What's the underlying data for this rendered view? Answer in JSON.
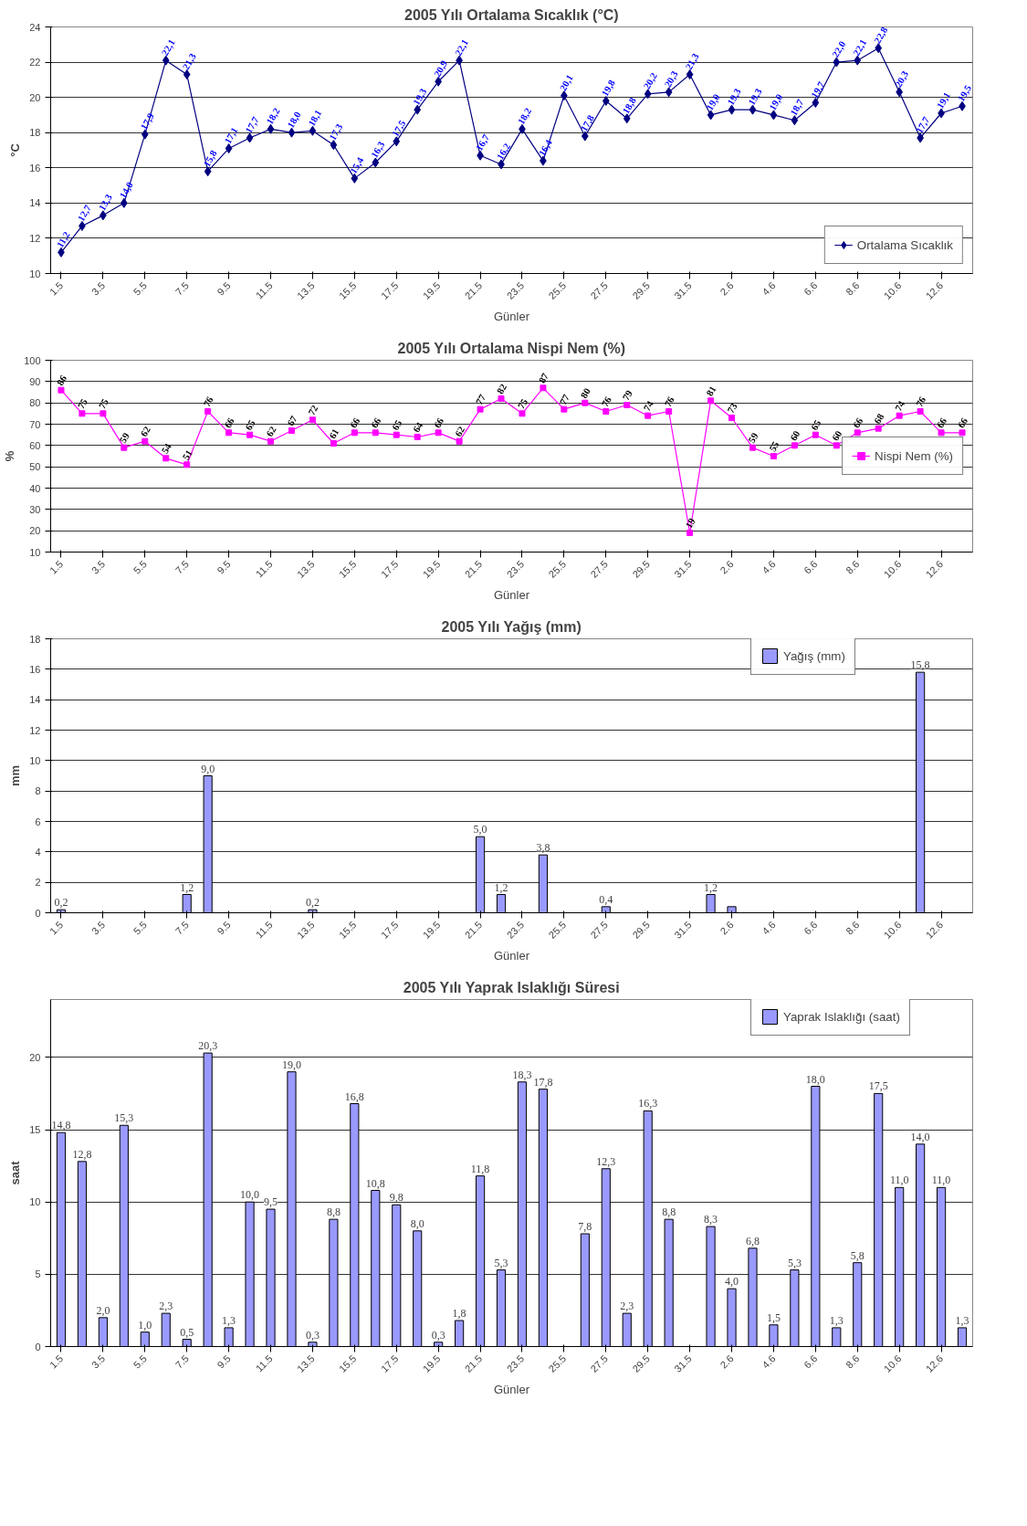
{
  "chart_data": [
    {
      "type": "line",
      "title": "2005 Yılı Ortalama Sıcaklık (°C)",
      "xlabel": "Günler",
      "ylabel": "°C",
      "categories": [
        "1.5",
        null,
        "3.5",
        null,
        "5.5",
        null,
        "7.5",
        null,
        "9.5",
        null,
        "11.5",
        null,
        "13.5",
        null,
        "15.5",
        null,
        "17.5",
        null,
        "19.5",
        null,
        "21.5",
        null,
        "23.5",
        null,
        "25.5",
        null,
        "27.5",
        null,
        "29.5",
        null,
        "31.5",
        null,
        "2.6",
        null,
        "4.6",
        null,
        "6.6",
        null,
        "8.6",
        null,
        "10.6",
        null,
        "12.6",
        null
      ],
      "ylim": [
        10,
        24
      ],
      "yticks": [
        10,
        12,
        14,
        16,
        18,
        20,
        22,
        24
      ],
      "grid": "y",
      "legend": "bottom right",
      "marker": "diamond",
      "line_style": "solid",
      "series": [
        {
          "name": "Ortalama Sıcaklık",
          "color": "#000080",
          "values": [
            11.2,
            12.7,
            13.3,
            14.0,
            17.9,
            22.1,
            21.3,
            15.8,
            17.1,
            17.7,
            18.2,
            18.0,
            18.1,
            17.3,
            15.4,
            16.3,
            17.5,
            19.3,
            20.9,
            22.1,
            16.7,
            16.2,
            18.2,
            16.4,
            20.1,
            17.8,
            19.8,
            18.8,
            20.2,
            20.3,
            21.3,
            19.0,
            19.3,
            19.3,
            19.0,
            18.7,
            19.7,
            22.0,
            22.1,
            22.8,
            20.3,
            17.7,
            19.1,
            19.5
          ],
          "value_labels": [
            "11,2",
            "12,7",
            "13,3",
            "14,0",
            "17,9",
            "22,1",
            "21,3",
            "15,8",
            "17,1",
            "17,7",
            "18,2",
            "18,0",
            "18,1",
            "17,3",
            "15,4",
            "16,3",
            "17,5",
            "19,3",
            "20,9",
            "22,1",
            "16,7",
            "16,2",
            "18,2",
            "16,4",
            "20,1",
            "17,8",
            "19,8",
            "18,8",
            "20,2",
            "20,3",
            "21,3",
            "19,0",
            "19,3",
            "19,3",
            "19,0",
            "18,7",
            "19,7",
            "22,0",
            "22,1",
            "22,8",
            "20,3",
            "17,7",
            "19,1",
            "19,5"
          ]
        }
      ]
    },
    {
      "type": "line",
      "title": "2005 Yılı Ortalama Nispi Nem (%)",
      "xlabel": "Günler",
      "ylabel": "%",
      "categories": [
        "1.5",
        null,
        "3.5",
        null,
        "5.5",
        null,
        "7.5",
        null,
        "9.5",
        null,
        "11.5",
        null,
        "13.5",
        null,
        "15.5",
        null,
        "17.5",
        null,
        "19.5",
        null,
        "21.5",
        null,
        "23.5",
        null,
        "25.5",
        null,
        "27.5",
        null,
        "29.5",
        null,
        "31.5",
        null,
        "2.6",
        null,
        "4.6",
        null,
        "6.6",
        null,
        "8.6",
        null,
        "10.6",
        null,
        "12.6",
        null
      ],
      "ylim": [
        10,
        100
      ],
      "yticks": [
        10,
        20,
        30,
        40,
        50,
        60,
        70,
        80,
        90,
        100
      ],
      "grid": "y",
      "legend": "right",
      "marker": "square",
      "line_style": "solid",
      "series": [
        {
          "name": "Nispi Nem (%)",
          "color": "#ff00ff",
          "values": [
            86,
            75,
            75,
            59,
            62,
            54,
            51,
            76,
            66,
            65,
            62,
            67,
            72,
            61,
            66,
            66,
            65,
            64,
            66,
            62,
            77,
            82,
            75,
            87,
            77,
            80,
            76,
            79,
            74,
            76,
            19,
            81,
            73,
            59,
            55,
            60,
            65,
            60,
            66,
            68,
            74,
            76,
            66,
            66
          ],
          "value_labels": [
            "86",
            "75",
            "75",
            "59",
            "62",
            "54",
            "51",
            "76",
            "66",
            "65",
            "62",
            "67",
            "72",
            "61",
            "66",
            "66",
            "65",
            "64",
            "66",
            "62",
            "77",
            "82",
            "75",
            "87",
            "77",
            "80",
            "76",
            "79",
            "74",
            "76",
            "19",
            "81",
            "73",
            "59",
            "55",
            "60",
            "65",
            "60",
            "66",
            "68",
            "74",
            "76",
            "66",
            "66"
          ]
        }
      ]
    },
    {
      "type": "bar",
      "title": "2005 Yılı Yağış (mm)",
      "xlabel": "Günler",
      "ylabel": "mm",
      "categories": [
        "1.5",
        null,
        "3.5",
        null,
        "5.5",
        null,
        "7.5",
        null,
        "9.5",
        null,
        "11.5",
        null,
        "13.5",
        null,
        "15.5",
        null,
        "17.5",
        null,
        "19.5",
        null,
        "21.5",
        null,
        "23.5",
        null,
        "25.5",
        null,
        "27.5",
        null,
        "29.5",
        null,
        "31.5",
        null,
        "2.6",
        null,
        "4.6",
        null,
        "6.6",
        null,
        "8.6",
        null,
        "10.6",
        null,
        "12.6",
        null
      ],
      "ylim": [
        0,
        18
      ],
      "yticks": [
        0,
        2,
        4,
        6,
        8,
        10,
        12,
        14,
        16,
        18
      ],
      "grid": "y",
      "legend": "top right",
      "series": [
        {
          "name": "Yağış (mm)",
          "color": "#9999ff",
          "values": [
            0.2,
            0,
            0,
            0,
            0,
            0,
            1.2,
            9.0,
            0,
            0,
            0,
            0,
            0.2,
            0,
            0,
            0,
            0,
            0,
            0,
            0,
            5.0,
            1.2,
            0,
            3.8,
            0,
            0,
            0.4,
            0,
            0,
            0,
            0,
            1.2,
            0.4,
            0,
            0,
            0,
            0,
            0,
            0,
            0,
            0,
            15.8,
            0,
            0
          ],
          "value_labels": [
            "0,2",
            null,
            null,
            null,
            null,
            null,
            "1,2",
            "9,0",
            null,
            null,
            null,
            null,
            "0,2",
            null,
            null,
            null,
            null,
            null,
            null,
            null,
            "5,0",
            "1,2",
            null,
            "3,8",
            null,
            null,
            "0,4",
            null,
            null,
            null,
            null,
            "1,2",
            null,
            null,
            null,
            null,
            null,
            null,
            null,
            null,
            null,
            "15,8",
            null,
            null
          ]
        }
      ]
    },
    {
      "type": "bar",
      "title": "2005 Yılı Yaprak Islaklığı Süresi",
      "xlabel": "Günler",
      "ylabel": "saat",
      "categories": [
        "1.5",
        null,
        "3.5",
        null,
        "5.5",
        null,
        "7.5",
        null,
        "9.5",
        null,
        "11.5",
        null,
        "13.5",
        null,
        "15.5",
        null,
        "17.5",
        null,
        "19.5",
        null,
        "21.5",
        null,
        "23.5",
        null,
        "25.5",
        null,
        "27.5",
        null,
        "29.5",
        null,
        "31.5",
        null,
        "2.6",
        null,
        "4.6",
        null,
        "6.6",
        null,
        "8.6",
        null,
        "10.6",
        null,
        "12.6",
        null
      ],
      "ylim": [
        0,
        24
      ],
      "yticks": [
        0,
        5,
        10,
        15,
        20
      ],
      "grid": "y",
      "legend": "top right",
      "series": [
        {
          "name": "Yaprak Islaklığı (saat)",
          "color": "#9999ff",
          "values": [
            14.8,
            12.8,
            2.0,
            15.3,
            1.0,
            2.3,
            0.5,
            20.3,
            1.3,
            10.0,
            9.5,
            19.0,
            0.3,
            8.8,
            16.8,
            10.8,
            9.8,
            8.0,
            0.3,
            1.8,
            11.8,
            5.3,
            18.3,
            17.8,
            null,
            7.8,
            12.3,
            2.3,
            16.3,
            8.8,
            null,
            8.3,
            4.0,
            6.8,
            1.5,
            5.3,
            18.0,
            1.3,
            5.8,
            17.5,
            11.0,
            14.0,
            11.0,
            1.3
          ],
          "value_labels": [
            "14,8",
            "12,8",
            "2,0",
            "15,3",
            "1,0",
            "2,3",
            "0,5",
            "20,3",
            "1,3",
            "10,0",
            "9,5",
            "19,0",
            "0,3",
            "8,8",
            "16,8",
            "10,8",
            "9,8",
            "8,0",
            "0,3",
            "1,8",
            "11,8",
            "5,3",
            "18,3",
            "17,8",
            null,
            "7,8",
            "12,3",
            "2,3",
            "16,3",
            "8,8",
            null,
            "8,3",
            "4,0",
            "6,8",
            "1,5",
            "5,3",
            "18,0",
            "1,3",
            "5,8",
            "17,5",
            "11,0",
            "14,0",
            "11,0",
            "1,3"
          ]
        }
      ]
    }
  ]
}
